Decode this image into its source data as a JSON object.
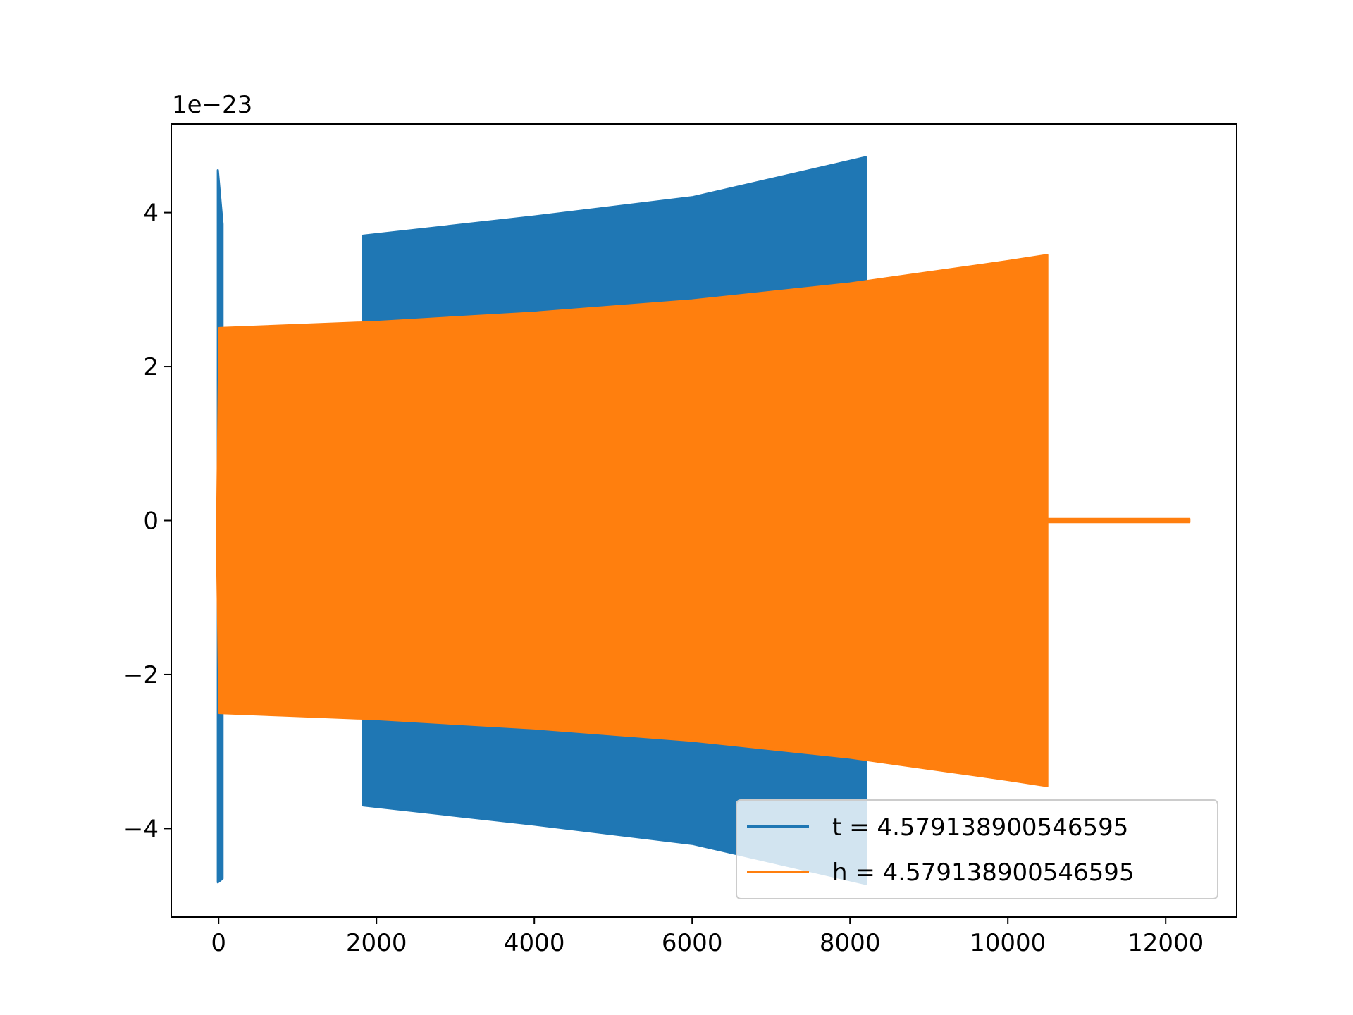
{
  "chart_data": {
    "type": "line",
    "title": "",
    "xlabel": "",
    "ylabel": "",
    "y_offset_label": "1e−23",
    "xlim": [
      -600,
      12900
    ],
    "ylim": [
      -5.15,
      5.15
    ],
    "x_ticks": [
      0,
      2000,
      4000,
      6000,
      8000,
      10000,
      12000
    ],
    "x_tick_labels": [
      "0",
      "2000",
      "4000",
      "6000",
      "8000",
      "10000",
      "12000"
    ],
    "y_ticks": [
      -4,
      -2,
      0,
      2,
      4
    ],
    "y_tick_labels": [
      "−4",
      "−2",
      "0",
      "2",
      "4"
    ],
    "grid": false,
    "legend_position": "lower-right",
    "series": [
      {
        "name": "t = 4.579138900546595",
        "color": "#1f77b4",
        "kind": "oscillation-envelope",
        "segments": [
          {
            "x": [
              -10,
              50
            ],
            "upper": [
              4.55,
              3.85
            ],
            "lower": [
              -4.7,
              -4.65
            ]
          },
          {
            "x": [
              1830,
              4000,
              6000,
              8200
            ],
            "upper": [
              3.7,
              3.95,
              4.2,
              4.72
            ],
            "lower": [
              -3.7,
              -3.95,
              -4.2,
              -4.72
            ]
          }
        ]
      },
      {
        "name": "h = 4.579138900546595",
        "color": "#ff7f0e",
        "kind": "oscillation-envelope",
        "segments": [
          {
            "x": [
              -20,
              10
            ],
            "upper": [
              -0.1,
              2.45
            ],
            "lower": [
              -0.4,
              -2.45
            ]
          },
          {
            "x": [
              10,
              2000,
              4000,
              6000,
              8000,
              10000,
              10500
            ],
            "upper": [
              2.5,
              2.58,
              2.7,
              2.86,
              3.08,
              3.37,
              3.45
            ],
            "lower": [
              -2.5,
              -2.58,
              -2.7,
              -2.86,
              -3.08,
              -3.37,
              -3.45
            ]
          },
          {
            "x": [
              10500,
              12300
            ],
            "upper": [
              0.02,
              0.02
            ],
            "lower": [
              -0.02,
              -0.02
            ]
          }
        ]
      }
    ]
  }
}
